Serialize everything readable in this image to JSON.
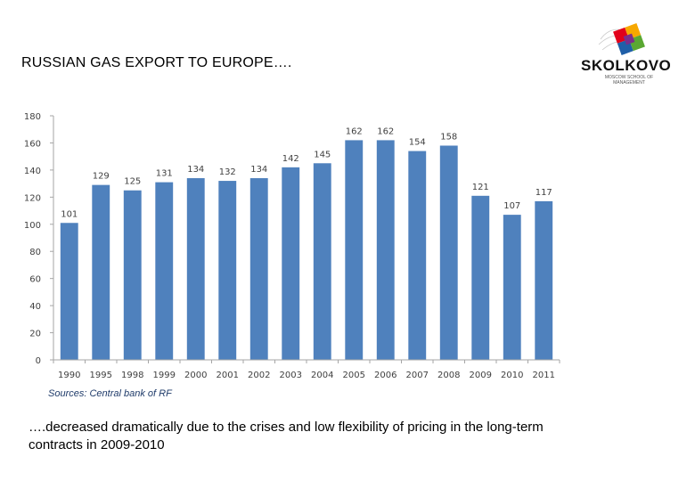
{
  "header": {
    "title": "RUSSIAN GAS EXPORT TO EUROPE…."
  },
  "logo": {
    "name": "SKOLKOVO",
    "tagline": "MOSCOW SCHOOL OF MANAGEMENT"
  },
  "chart_data": {
    "type": "bar",
    "title": "",
    "xlabel": "",
    "ylabel": "",
    "ylim": [
      0,
      180
    ],
    "yticks": [
      0,
      20,
      40,
      60,
      80,
      100,
      120,
      140,
      160,
      180
    ],
    "grid": false,
    "bar_color": "#4f81bd",
    "categories": [
      "1990",
      "1995",
      "1998",
      "1999",
      "2000",
      "2001",
      "2002",
      "2003",
      "2004",
      "2005",
      "2006",
      "2007",
      "2008",
      "2009",
      "2010",
      "2011"
    ],
    "values": [
      101,
      129,
      125,
      131,
      134,
      132,
      134,
      142,
      145,
      162,
      162,
      154,
      158,
      121,
      107,
      117
    ]
  },
  "source": "Sources: Central bank of RF",
  "note": "….decreased dramatically due to the crises and low flexibility of pricing in the long-term contracts in 2009-2010"
}
